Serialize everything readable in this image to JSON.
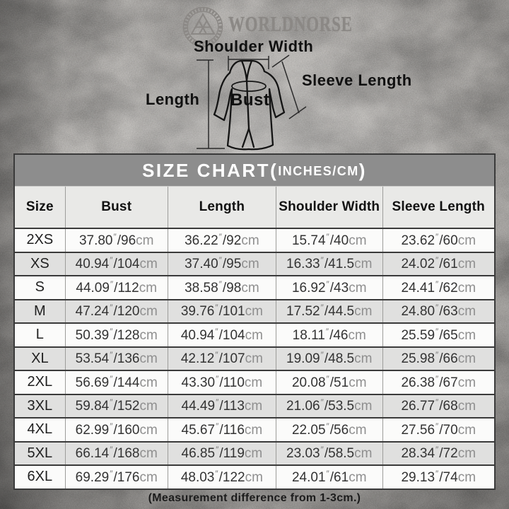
{
  "brand": {
    "name": "WORLDNORSE",
    "logo_icon": "valknut-badge-icon",
    "color": "#8b8885"
  },
  "diagram": {
    "shoulder_width_label": "Shoulder Width",
    "sleeve_length_label": "Sleeve Length",
    "length_label": "Length",
    "bust_label": "Bust"
  },
  "size_chart": {
    "title_main": "SIZE CHART(",
    "title_unit": "INCHES/CM",
    "title_close": ")",
    "title_bar_color": "#8d8d8d",
    "row_stripe_colors": [
      "#fbfbfa",
      "#e0e0df"
    ],
    "columns": [
      "Size",
      "Bust",
      "Length",
      "Shoulder Width",
      "Sleeve Length"
    ],
    "inch_mark": "″",
    "cm_unit": "cm",
    "rows": [
      {
        "size": "2XS",
        "measurements": [
          {
            "inches": "37.80",
            "cm": "96"
          },
          {
            "inches": "36.22",
            "cm": "92"
          },
          {
            "inches": "15.74",
            "cm": "40"
          },
          {
            "inches": "23.62",
            "cm": "60"
          }
        ]
      },
      {
        "size": "XS",
        "measurements": [
          {
            "inches": "40.94",
            "cm": "104"
          },
          {
            "inches": "37.40",
            "cm": "95"
          },
          {
            "inches": "16.33",
            "cm": "41.5"
          },
          {
            "inches": "24.02",
            "cm": "61"
          }
        ]
      },
      {
        "size": "S",
        "measurements": [
          {
            "inches": "44.09",
            "cm": "112"
          },
          {
            "inches": "38.58",
            "cm": "98"
          },
          {
            "inches": "16.92",
            "cm": "43"
          },
          {
            "inches": "24.41",
            "cm": "62"
          }
        ]
      },
      {
        "size": "M",
        "measurements": [
          {
            "inches": "47.24",
            "cm": "120"
          },
          {
            "inches": "39.76",
            "cm": "101"
          },
          {
            "inches": "17.52",
            "cm": "44.5"
          },
          {
            "inches": "24.80",
            "cm": "63"
          }
        ]
      },
      {
        "size": "L",
        "measurements": [
          {
            "inches": "50.39",
            "cm": "128"
          },
          {
            "inches": "40.94",
            "cm": "104"
          },
          {
            "inches": "18.11",
            "cm": "46"
          },
          {
            "inches": "25.59",
            "cm": "65"
          }
        ]
      },
      {
        "size": "XL",
        "measurements": [
          {
            "inches": "53.54",
            "cm": "136"
          },
          {
            "inches": "42.12",
            "cm": "107"
          },
          {
            "inches": "19.09",
            "cm": "48.5"
          },
          {
            "inches": "25.98",
            "cm": "66"
          }
        ]
      },
      {
        "size": "2XL",
        "measurements": [
          {
            "inches": "56.69",
            "cm": "144"
          },
          {
            "inches": "43.30",
            "cm": "110"
          },
          {
            "inches": "20.08",
            "cm": "51"
          },
          {
            "inches": "26.38",
            "cm": "67"
          }
        ]
      },
      {
        "size": "3XL",
        "measurements": [
          {
            "inches": "59.84",
            "cm": "152"
          },
          {
            "inches": "44.49",
            "cm": "113"
          },
          {
            "inches": "21.06",
            "cm": "53.5"
          },
          {
            "inches": "26.77",
            "cm": "68"
          }
        ]
      },
      {
        "size": "4XL",
        "measurements": [
          {
            "inches": "62.99",
            "cm": "160"
          },
          {
            "inches": "45.67",
            "cm": "116"
          },
          {
            "inches": "22.05",
            "cm": "56"
          },
          {
            "inches": "27.56",
            "cm": "70"
          }
        ]
      },
      {
        "size": "5XL",
        "measurements": [
          {
            "inches": "66.14",
            "cm": "168"
          },
          {
            "inches": "46.85",
            "cm": "119"
          },
          {
            "inches": "23.03",
            "cm": "58.5"
          },
          {
            "inches": "28.34",
            "cm": "72"
          }
        ]
      },
      {
        "size": "6XL",
        "measurements": [
          {
            "inches": "69.29",
            "cm": "176"
          },
          {
            "inches": "48.03",
            "cm": "122"
          },
          {
            "inches": "24.01",
            "cm": "61"
          },
          {
            "inches": "29.13",
            "cm": "74"
          }
        ]
      }
    ],
    "note": "(Measurement difference from 1-3cm.)"
  }
}
